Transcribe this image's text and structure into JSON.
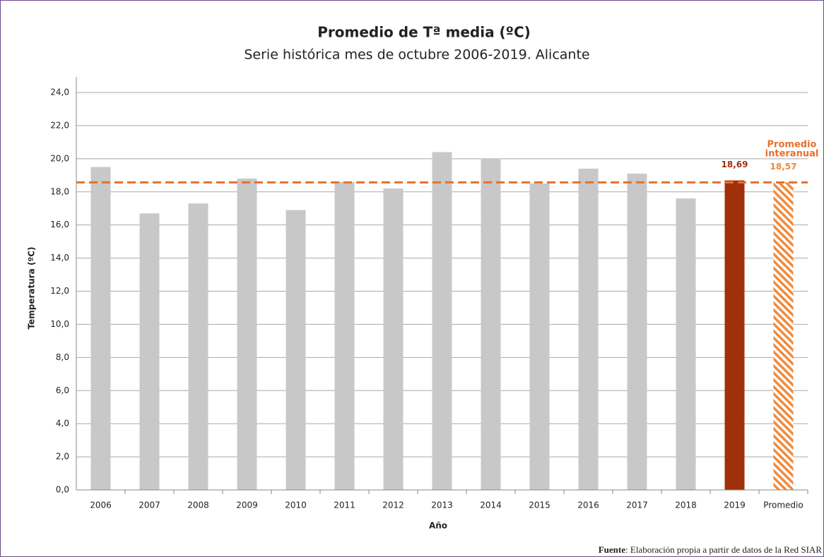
{
  "chart_data": {
    "type": "bar",
    "title": "Promedio de Tª media (ºC)",
    "subtitle": "Serie histórica mes de octubre 2006-2019. Alicante",
    "x_label": "Año",
    "y_label": "Temperatura (ºC)",
    "categories": [
      "2006",
      "2007",
      "2008",
      "2009",
      "2010",
      "2011",
      "2012",
      "2013",
      "2014",
      "2015",
      "2016",
      "2017",
      "2018",
      "2019",
      "Promedio"
    ],
    "values": [
      19.5,
      16.7,
      17.3,
      18.8,
      16.9,
      18.6,
      18.2,
      20.4,
      20.0,
      18.5,
      19.4,
      19.1,
      17.6,
      18.69,
      18.57
    ],
    "value_labels": [
      null,
      null,
      null,
      null,
      null,
      null,
      null,
      null,
      null,
      null,
      null,
      null,
      null,
      "18,69",
      "18,57"
    ],
    "colors": [
      "#c8c8c8",
      "#c8c8c8",
      "#c8c8c8",
      "#c8c8c8",
      "#c8c8c8",
      "#c8c8c8",
      "#c8c8c8",
      "#c8c8c8",
      "#c8c8c8",
      "#c8c8c8",
      "#c8c8c8",
      "#c8c8c8",
      "#c8c8c8",
      "#a0300a",
      "#ef8a3c"
    ],
    "hatched": [
      false,
      false,
      false,
      false,
      false,
      false,
      false,
      false,
      false,
      false,
      false,
      false,
      false,
      false,
      true
    ],
    "mean_line": {
      "value": 18.57,
      "color": "#e8702a"
    },
    "annotation": [
      "Promedio",
      "interanual"
    ],
    "ylim": [
      0,
      24
    ],
    "yticks": [
      {
        "value": 0,
        "label": "0,0"
      },
      {
        "value": 2,
        "label": "2,0"
      },
      {
        "value": 4,
        "label": "4,0"
      },
      {
        "value": 6,
        "label": "6,0"
      },
      {
        "value": 8,
        "label": "8,0"
      },
      {
        "value": 10,
        "label": "10,0"
      },
      {
        "value": 12,
        "label": "12,0"
      },
      {
        "value": 14,
        "label": "14,0"
      },
      {
        "value": 16,
        "label": "16,0"
      },
      {
        "value": 18,
        "label": "18,0"
      },
      {
        "value": 20,
        "label": "20,0"
      },
      {
        "value": 22,
        "label": "22,0"
      },
      {
        "value": 24,
        "label": "24,0"
      }
    ],
    "grid": true,
    "source_label": "Fuente",
    "source_text": ": Elaboración propia a partir de datos de la Red SIAR"
  }
}
